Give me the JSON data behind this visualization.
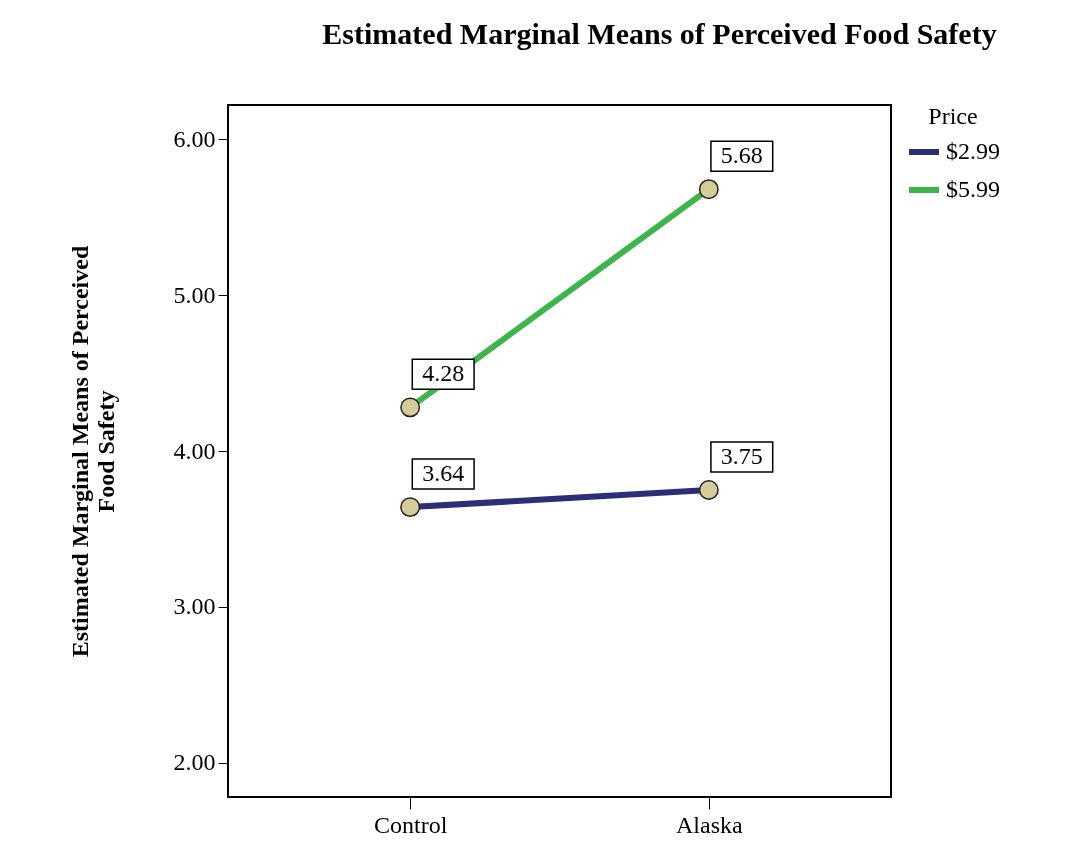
{
  "chart_data": {
    "type": "line",
    "title": "Estimated Marginal Means of Perceived Food Safety",
    "ylabel": "Estimated Marginal Means of Perceived Food Safety",
    "legend_title": "Price",
    "categories": [
      "Control",
      "Alaska"
    ],
    "series": [
      {
        "name": "$2.99",
        "color": "#2e2e78",
        "values": [
          3.64,
          3.75
        ]
      },
      {
        "name": "$5.99",
        "color": "#3cb54a",
        "values": [
          4.28,
          5.68
        ]
      }
    ],
    "ylim": [
      1.78,
      6.22
    ],
    "yticks": [
      {
        "value": 2,
        "label": "2.00"
      },
      {
        "value": 3,
        "label": "3.00"
      },
      {
        "value": 4,
        "label": "4.00"
      },
      {
        "value": 5,
        "label": "5.00"
      },
      {
        "value": 6,
        "label": "6.00"
      }
    ],
    "line_style": "solid",
    "marker": "circle",
    "data_labels": true,
    "legend": "top right",
    "grid": false
  }
}
